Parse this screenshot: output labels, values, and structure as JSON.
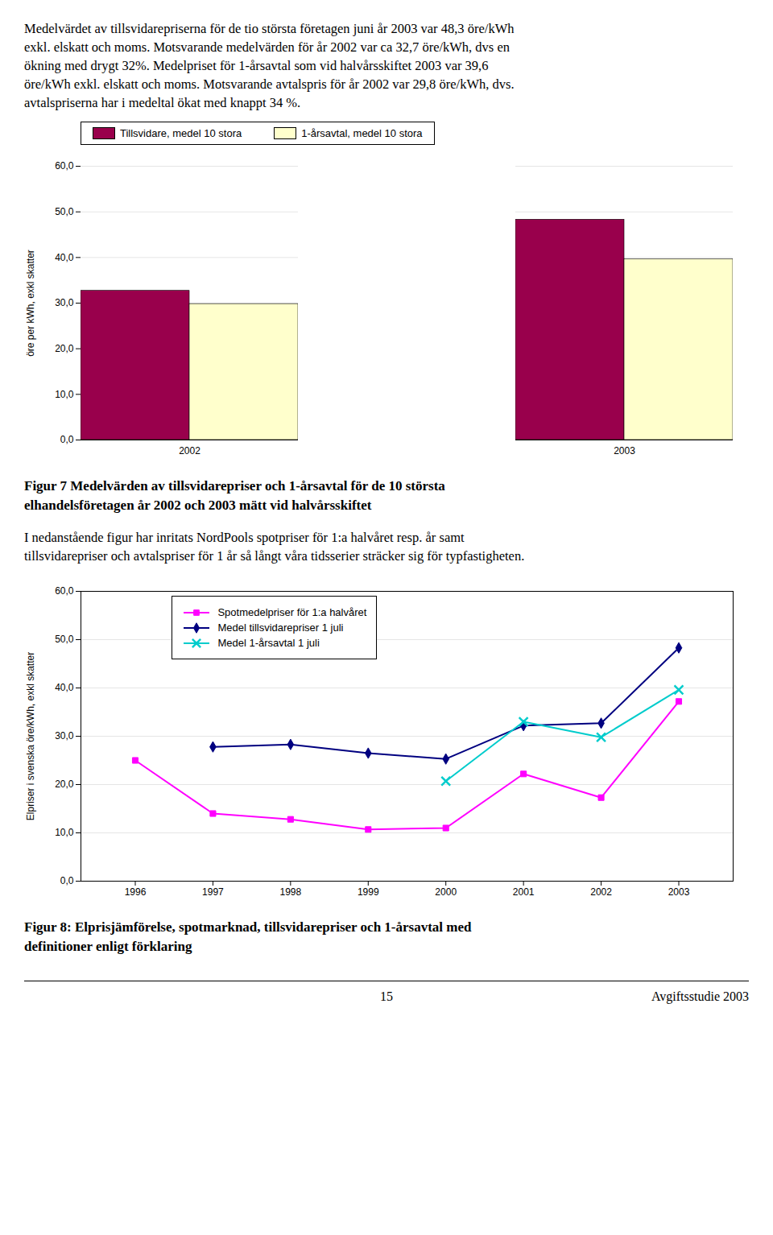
{
  "chart_data": [
    {
      "type": "bar",
      "subtitle": [
        "Medelvärdet av tillsvidarepriserna för de tio största företagen juni år 2003 var 48,3 öre/kWh",
        "exkl. elskatt och moms. Motsvarande medelvärden för år 2002 var ca 32,7 öre/kWh, dvs en",
        "ökning med drygt 32%. Medelpriset för 1-årsavtal som vid halvårsskiftet 2003 var 39,6",
        "öre/kWh exkl. elskatt och moms. Motsvarande avtalspris för år 2002 var 29,8 öre/kWh, dvs.",
        "avtalspriserna har i medeltal ökat med knappt 34 %."
      ],
      "title": [
        "Figur 7 Medelvärden av tillsvidarepriser och 1-årsavtal för de 10 största",
        "elhandelsföretagen år 2002 och 2003 mätt vid halvårsskiftet"
      ],
      "categories": [
        "2002",
        "2003"
      ],
      "series": [
        {
          "name": "Tillsvidare, medel 10 stora",
          "color": "#99004C",
          "values": [
            32.7,
            48.3
          ]
        },
        {
          "name": "1-årsavtal, medel 10 stora",
          "color": "#FFFFCC",
          "values": [
            29.8,
            39.6
          ]
        }
      ],
      "ylabel": "öre per kWh, exkl skatter",
      "ylim": [
        0,
        60
      ],
      "yticks": [
        {
          "value": 0,
          "label": "0,0"
        },
        {
          "value": 10,
          "label": "10,0"
        },
        {
          "value": 20,
          "label": "20,0"
        },
        {
          "value": 30,
          "label": "30,0"
        },
        {
          "value": 40,
          "label": "40,0"
        },
        {
          "value": 50,
          "label": "50,0"
        },
        {
          "value": 60,
          "label": "60,0"
        }
      ],
      "grid": true,
      "legend": "top"
    },
    {
      "type": "line",
      "subtitle": [
        "I nedanstående figur har inritats NordPools spotpriser för 1:a halvåret resp. år samt",
        "tillsvidarepriser och avtalspriser för 1 år så långt våra tidsserier sträcker sig för typfastigheten."
      ],
      "title": [
        "Figur 8: Elprisjämförelse, spotmarknad, tillsvidarepriser och 1-årsavtal med",
        "definitioner enligt förklaring"
      ],
      "x": [
        1996,
        1997,
        1998,
        1999,
        2000,
        2001,
        2002,
        2003
      ],
      "series": [
        {
          "name": "Spotmedelpriser för 1:a halvåret",
          "color": "#FF00FF",
          "marker": "square",
          "values": [
            25.0,
            14.0,
            12.8,
            10.7,
            11.0,
            22.2,
            17.3,
            37.2
          ]
        },
        {
          "name": "Medel tillsvidarepriser 1 juli",
          "color": "#000080",
          "marker": "diamond",
          "values": [
            null,
            27.8,
            28.3,
            26.5,
            25.3,
            32.2,
            32.7,
            48.3
          ]
        },
        {
          "name": "Medel 1-årsavtal 1 juli",
          "color": "#00CCCC",
          "marker": "x",
          "values": [
            null,
            null,
            null,
            null,
            20.7,
            33.0,
            29.8,
            39.6
          ]
        }
      ],
      "ylabel": "Elpriser i svenska öre/kWh, exkl skatter",
      "xlim": [
        1995.3,
        2003.7
      ],
      "xticks": [
        1996,
        1997,
        1998,
        1999,
        2000,
        2001,
        2002,
        2003
      ],
      "ylim": [
        0,
        60
      ],
      "yticks": [
        {
          "value": 0,
          "label": "0,0"
        },
        {
          "value": 10,
          "label": "10,0"
        },
        {
          "value": 20,
          "label": "20,0"
        },
        {
          "value": 30,
          "label": "30,0"
        },
        {
          "value": 40,
          "label": "40,0"
        },
        {
          "value": 50,
          "label": "50,0"
        },
        {
          "value": 60,
          "label": "60,0"
        }
      ],
      "grid": true,
      "legend": "upper left",
      "annotations": [
        "15",
        "Avgiftsstudie 2003"
      ]
    }
  ]
}
